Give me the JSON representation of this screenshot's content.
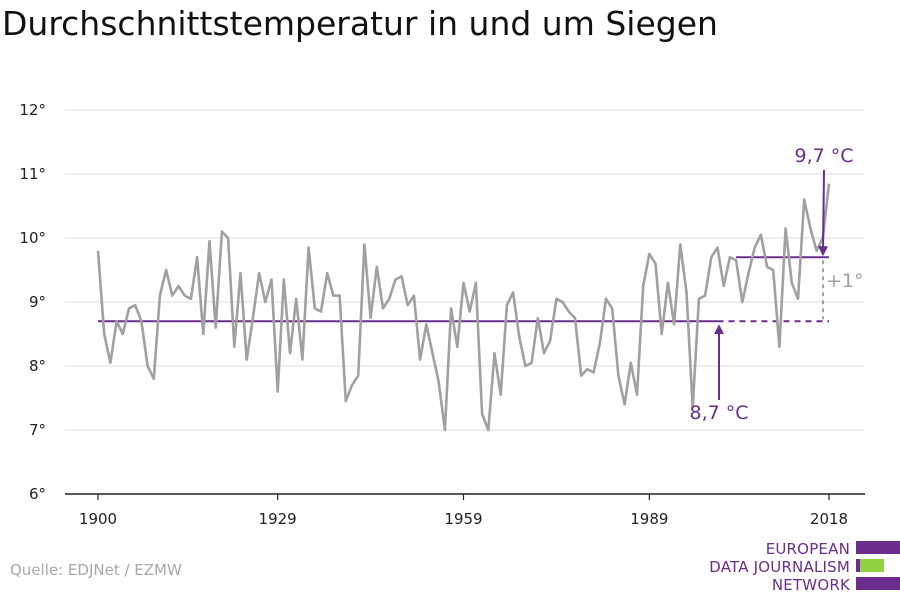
{
  "title": "Durchschnittstemperatur in und um Siegen",
  "source": "Quelle: EDJNet / EZMW",
  "logo": {
    "line1": "EUROPEAN",
    "line2": "DATA JOURNALISM",
    "line3": "NETWORK"
  },
  "colors": {
    "series": "#a0a0a0",
    "accent": "#6b2d8c",
    "delta": "#a0a0a0",
    "logo_green": "#8fd13f",
    "grid": "#dddddd",
    "axis": "#222222"
  },
  "chart_data": {
    "type": "line",
    "title": "Durchschnittstemperatur in und um Siegen",
    "xlabel": "",
    "ylabel": "",
    "xlim": [
      1900,
      2018
    ],
    "ylim": [
      6,
      12
    ],
    "x_ticks": [
      "1900",
      "1929",
      "1959",
      "1989",
      "2018"
    ],
    "y_ticks": [
      "6°",
      "7°",
      "8°",
      "9°",
      "10°",
      "11°",
      "12°"
    ],
    "grid": true,
    "series": [
      {
        "x": [
          1900,
          1901,
          1902,
          1903,
          1904,
          1905,
          1906,
          1907,
          1908,
          1909,
          1910,
          1911,
          1912,
          1913,
          1914,
          1915,
          1916,
          1917,
          1918,
          1919,
          1920,
          1921,
          1922,
          1923,
          1924,
          1925,
          1926,
          1927,
          1928,
          1929,
          1930,
          1931,
          1932,
          1933,
          1934,
          1935,
          1936,
          1937,
          1938,
          1939,
          1940,
          1941,
          1942,
          1943,
          1944,
          1945,
          1946,
          1947,
          1948,
          1949,
          1950,
          1951,
          1952,
          1953,
          1954,
          1955,
          1956,
          1957,
          1958,
          1959,
          1960,
          1961,
          1962,
          1963,
          1964,
          1965,
          1966,
          1967,
          1968,
          1969,
          1970,
          1971,
          1972,
          1973,
          1974,
          1975,
          1976,
          1977,
          1978,
          1979,
          1980,
          1981,
          1982,
          1983,
          1984,
          1985,
          1986,
          1987,
          1988,
          1989,
          1990,
          1991,
          1992,
          1993,
          1994,
          1995,
          1996,
          1997,
          1998,
          1999,
          2000,
          2001,
          2002,
          2003,
          2004,
          2005,
          2006,
          2007,
          2008,
          2009,
          2010,
          2011,
          2012,
          2013,
          2014,
          2015,
          2016,
          2017,
          2018
        ],
        "values": [
          9.8,
          8.5,
          8.05,
          8.7,
          8.5,
          8.9,
          8.95,
          8.7,
          8.0,
          7.8,
          9.1,
          9.5,
          9.1,
          9.25,
          9.1,
          9.05,
          9.7,
          8.5,
          9.95,
          8.6,
          10.1,
          10.0,
          8.3,
          9.45,
          8.1,
          8.75,
          9.45,
          9.0,
          9.35,
          7.6,
          9.35,
          8.2,
          9.05,
          8.1,
          9.85,
          8.9,
          8.85,
          9.45,
          9.1,
          9.1,
          7.45,
          7.7,
          7.85,
          9.9,
          8.75,
          9.55,
          8.9,
          9.05,
          9.35,
          9.4,
          8.95,
          9.1,
          8.1,
          8.65,
          8.2,
          7.75,
          7.0,
          8.9,
          8.3,
          9.3,
          8.85,
          9.3,
          7.25,
          7.0,
          8.2,
          7.55,
          8.95,
          9.15,
          8.45,
          8.0,
          8.05,
          8.75,
          8.2,
          8.4,
          9.05,
          9.0,
          8.85,
          8.75,
          7.85,
          7.95,
          7.9,
          8.35,
          9.05,
          8.9,
          7.85,
          7.4,
          8.05,
          7.55,
          9.25,
          9.75,
          9.6,
          8.5,
          9.3,
          8.65,
          9.9,
          9.15,
          7.35,
          9.05,
          9.1,
          9.7,
          9.85,
          9.25,
          9.7,
          9.65,
          9.0,
          9.45,
          9.85,
          10.05,
          9.55,
          9.5,
          8.3,
          10.15,
          9.3,
          9.05,
          10.6,
          10.15,
          9.8,
          10.0,
          10.85
        ]
      }
    ],
    "reference_lines": [
      {
        "label": "8,7 °C",
        "value": 8.7,
        "from": 1900,
        "to": 2018,
        "dashed_from": 2000
      },
      {
        "label": "9,7 °C",
        "value": 9.7,
        "from": 2003,
        "to": 2018
      }
    ],
    "annotations": [
      {
        "text": "9,7 °C"
      },
      {
        "text": "8,7 °C"
      },
      {
        "text": "+1°"
      }
    ]
  }
}
